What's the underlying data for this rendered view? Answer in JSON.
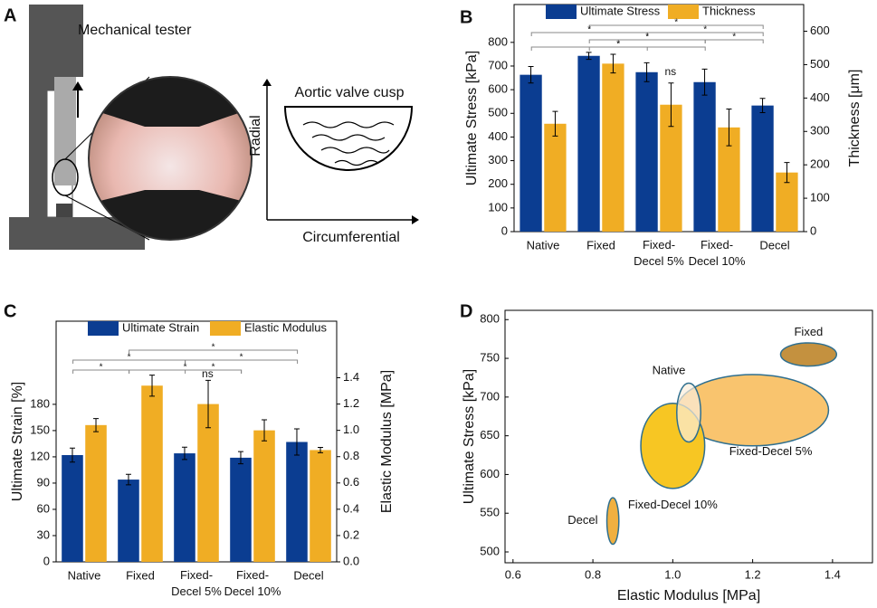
{
  "diagram": {
    "label": "A",
    "tester": "Mechanical tester",
    "sample": "Aortic valve cusp",
    "radial": "Radial",
    "circumferential": "Circumferential"
  },
  "chart_data": [
    {
      "type": "bar",
      "label": "B",
      "categories": [
        "Native",
        "Fixed",
        "Fixed-Decel 5%",
        "Fixed-Decel 10%",
        "Decel"
      ],
      "ylabel": "Ultimate Stress [kPa]",
      "y2label": "Thickness [μm]",
      "series": [
        {
          "name": "Ultimate Stress",
          "color": "#0b3d91",
          "values": [
            663,
            743,
            674,
            632,
            533
          ],
          "errors": [
            35,
            15,
            40,
            55,
            30
          ]
        },
        {
          "name": "Thickness",
          "color": "#f0ad24",
          "axis": "y2",
          "values": [
            323,
            503,
            380,
            312,
            177
          ],
          "errors": [
            37,
            28,
            65,
            55,
            30
          ]
        }
      ],
      "ylim": [
        0,
        960
      ],
      "yticks": [
        0,
        100,
        200,
        300,
        400,
        500,
        600,
        700,
        800
      ],
      "y2lim": [
        0,
        680
      ],
      "y2ticks": [
        0,
        100,
        200,
        300,
        400,
        500,
        600
      ],
      "significance": [
        "*",
        "*",
        "*",
        "*",
        "*",
        "*",
        "*",
        "ns"
      ]
    },
    {
      "type": "bar",
      "label": "C",
      "categories": [
        "Native",
        "Fixed",
        "Fixed-Decel 5%",
        "Fixed-Decel 10%",
        "Decel"
      ],
      "ylabel": "Ultimate Strain [%]",
      "y2label": "Elastic Modulus [MPa]",
      "series": [
        {
          "name": "Ultimate Strain",
          "color": "#0b3d91",
          "values": [
            122,
            94,
            124,
            119,
            137
          ],
          "errors": [
            8,
            6,
            7,
            7,
            15
          ]
        },
        {
          "name": "Elastic Modulus",
          "color": "#f0ad24",
          "axis": "y2",
          "values": [
            1.04,
            1.34,
            1.2,
            1.0,
            0.85
          ],
          "errors": [
            0.05,
            0.08,
            0.18,
            0.08,
            0.02
          ]
        }
      ],
      "ylim": [
        0,
        275
      ],
      "yticks": [
        0,
        30,
        60,
        90,
        120,
        150,
        180
      ],
      "y2lim": [
        0,
        1.83
      ],
      "y2ticks": [
        {
          "value": 0,
          "label": "0.0"
        },
        0.2,
        0.4,
        0.6,
        0.8,
        {
          "value": 1,
          "label": "1.0"
        },
        1.2,
        1.4
      ],
      "significance": [
        "*",
        "*",
        "*",
        "*",
        "*",
        "*",
        "ns"
      ]
    },
    {
      "type": "ellipse",
      "label": "D",
      "xlabel": "Elastic Modulus [MPa]",
      "ylabel": "Ultimate Stress [kPa]",
      "points": [
        {
          "name": "Fixed",
          "color": "#c4913f",
          "x": 1.34,
          "y": 755,
          "x_radius": 0.07,
          "y_radius": 15
        },
        {
          "name": "Native",
          "color": "#fbeedb",
          "x": 1.04,
          "y": 680,
          "x_radius": 0.03,
          "y_radius": 38
        },
        {
          "name": "Fixed-Decel 5%",
          "color": "#f9c46e",
          "x": 1.2,
          "y": 683,
          "x_radius": 0.19,
          "y_radius": 46
        },
        {
          "name": "Fixed-Decel 10%",
          "color": "#f7c623",
          "x": 1.0,
          "y": 637,
          "x_radius": 0.08,
          "y_radius": 55
        },
        {
          "name": "Decel",
          "color": "#f0b040",
          "x": 0.85,
          "y": 540,
          "x_radius": 0.015,
          "y_radius": 30
        }
      ],
      "xlim": [
        0.58,
        1.5
      ],
      "xticks": [
        0.6,
        0.8,
        {
          "value": 1,
          "label": "1.0"
        },
        1.2,
        1.4
      ],
      "ylim": [
        486,
        812
      ],
      "yticks": [
        500,
        550,
        600,
        650,
        700,
        750,
        800
      ]
    }
  ]
}
